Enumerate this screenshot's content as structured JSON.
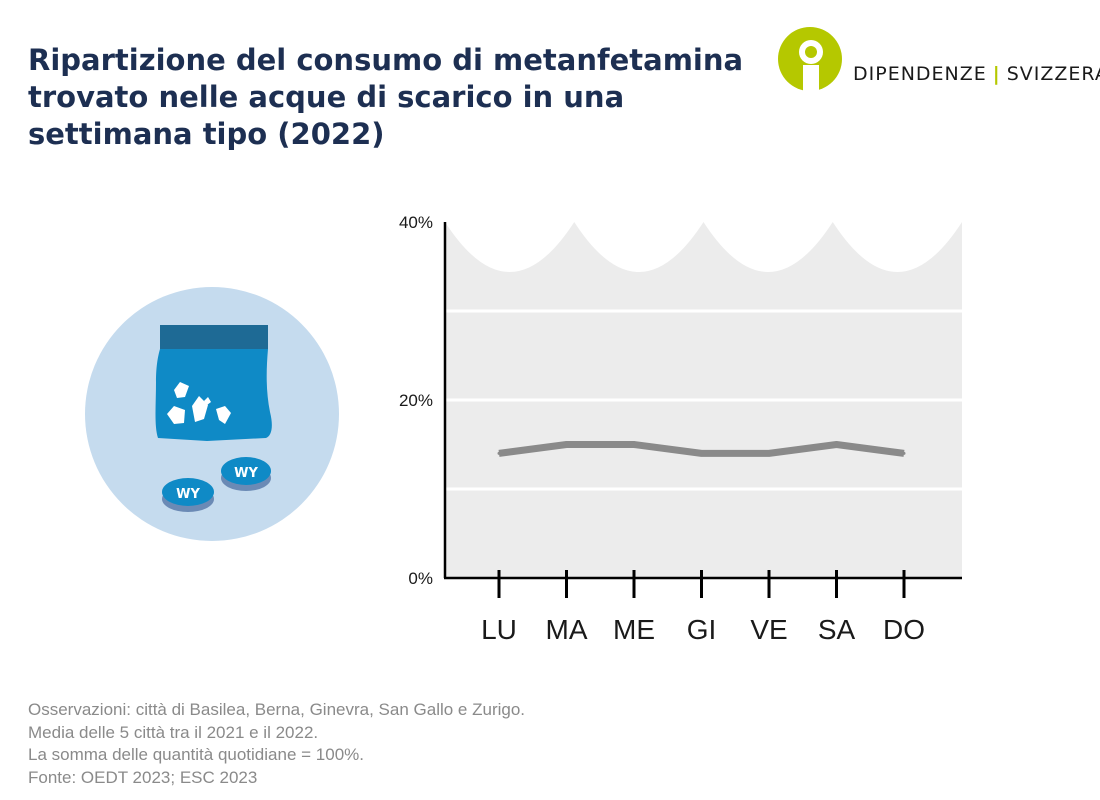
{
  "title": "Ripartizione del consumo di metanfetamina trovato nelle acque di scarico in una settimana tipo (2022)",
  "logo": {
    "part1": "DIPENDENZE",
    "separator": "|",
    "part2": "SVIZZERA",
    "accent_color": "#b5c800"
  },
  "illustration": {
    "pill_text_1": "WY",
    "pill_text_2": "WY"
  },
  "chart_data": {
    "type": "line",
    "title": "",
    "xlabel": "",
    "ylabel": "",
    "categories": [
      "LU",
      "MA",
      "ME",
      "GI",
      "VE",
      "SA",
      "DO"
    ],
    "series": [
      {
        "values": [
          14,
          15,
          15,
          14,
          14,
          15,
          14
        ]
      }
    ],
    "ylim": [
      0,
      40
    ],
    "yticks": [
      0,
      20,
      40
    ],
    "ytick_labels": [
      "0%",
      "20%",
      "40%"
    ],
    "grid": true,
    "line_color": "#8a8a8a",
    "background_color": "#ececec"
  },
  "footnotes": [
    "Osservazioni: città di Basilea, Berna, Ginevra, San Gallo e Zurigo.",
    "Media delle 5 città tra il 2021 e il 2022.",
    "La somma delle quantità quotidiane = 100%.",
    "Fonte: OEDT 2023; ESC 2023"
  ]
}
